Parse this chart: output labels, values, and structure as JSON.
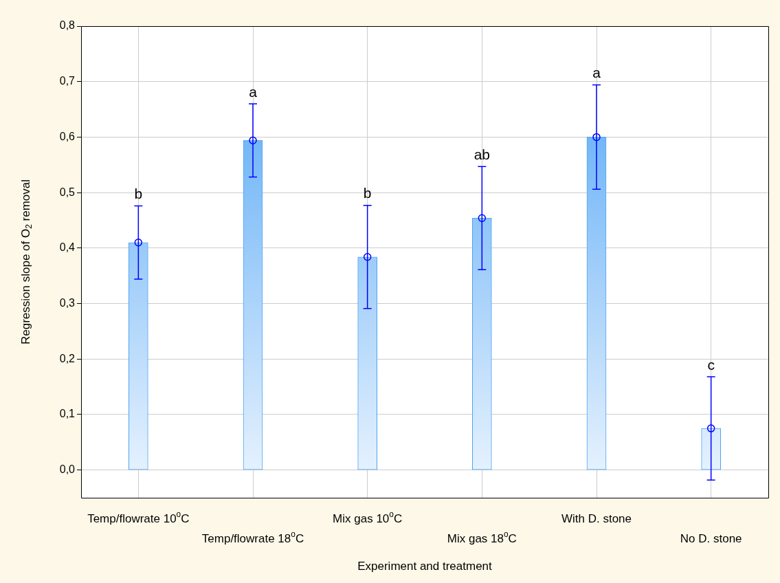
{
  "chart_data": {
    "type": "bar",
    "xlabel": "Experiment and treatment",
    "ylabel": "Regression slope of O$_{2}$ removal",
    "categories": [
      "Temp/flowrate 10$^{o}$C",
      "Temp/flowrate 18$^{o}$C",
      "Mix gas 10$^{o}$C",
      "Mix gas 18$^{o}$C",
      "With D. stone",
      "No D. stone"
    ],
    "series": [
      {
        "color": "#4da3f5",
        "values": [
          0.41,
          0.594,
          0.384,
          0.454,
          0.6,
          0.075
        ]
      },
      {
        "type": "scatter",
        "color": "#0000ff",
        "marker": "circle",
        "x": [
          "Temp/flowrate 10$^{o}$C",
          "Temp/flowrate 18$^{o}$C",
          "Mix gas 10$^{o}$C",
          "Mix gas 18$^{o}$C",
          "With D. stone",
          "No D. stone"
        ],
        "values": [
          0.41,
          0.594,
          0.384,
          0.454,
          0.6,
          0.075
        ],
        "errors": [
          0.066,
          0.066,
          0.093,
          0.093,
          0.094,
          0.093
        ]
      }
    ],
    "ylim": [
      -0.05,
      0.8
    ],
    "yticks": [
      {
        "value": 0,
        "label": "0,0"
      },
      {
        "value": 0.1,
        "label": "0,1"
      },
      {
        "value": 0.2,
        "label": "0,2"
      },
      {
        "value": 0.3,
        "label": "0,3"
      },
      {
        "value": 0.4,
        "label": "0,4"
      },
      {
        "value": 0.5,
        "label": "0,5"
      },
      {
        "value": 0.6,
        "label": "0,6"
      },
      {
        "value": 0.7,
        "label": "0,7"
      },
      {
        "value": 0.8,
        "label": "0,8"
      }
    ],
    "grid": true,
    "legend": false,
    "annotations": [
      "b",
      "a",
      "b",
      "ab",
      "a",
      "c"
    ]
  }
}
